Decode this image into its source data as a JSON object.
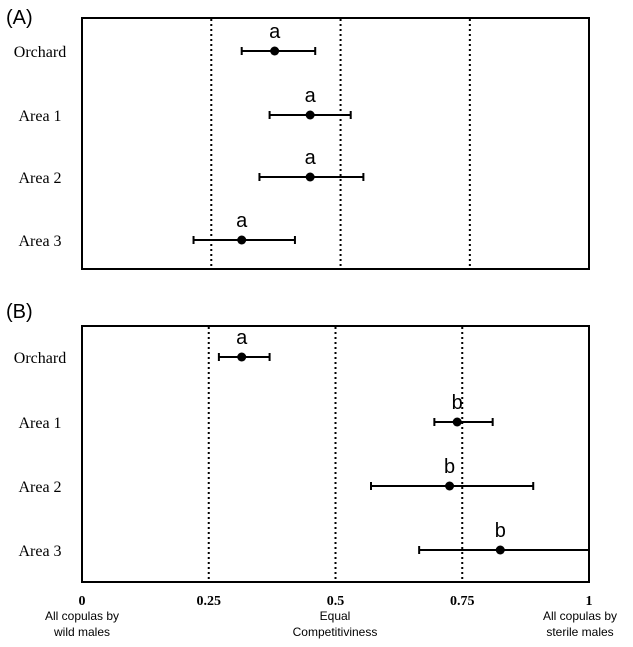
{
  "chart_data": [
    {
      "type": "scatter",
      "panel_label": "(A)",
      "categories": [
        "Orchard",
        "Area 1",
        "Area 2",
        "Area 3"
      ],
      "values": [
        0.38,
        0.45,
        0.45,
        0.315
      ],
      "ci_low": [
        0.315,
        0.37,
        0.35,
        0.22
      ],
      "ci_high": [
        0.46,
        0.53,
        0.555,
        0.42
      ],
      "letters": [
        "a",
        "a",
        "a",
        "a"
      ],
      "reference_lines": [
        0.255,
        0.51,
        0.765
      ],
      "xlim": [
        0,
        1
      ]
    },
    {
      "type": "scatter",
      "panel_label": "(B)",
      "categories": [
        "Orchard",
        "Area 1",
        "Area 2",
        "Area 3"
      ],
      "values": [
        0.315,
        0.74,
        0.725,
        0.825
      ],
      "ci_low": [
        0.27,
        0.695,
        0.57,
        0.665
      ],
      "ci_high": [
        0.37,
        0.81,
        0.89,
        1.0
      ],
      "letters": [
        "a",
        "b",
        "b",
        "b"
      ],
      "reference_lines": [
        0.25,
        0.5,
        0.75
      ],
      "xlim": [
        0,
        1
      ],
      "x_ticks": [
        "0",
        "0.25",
        "0.5",
        "0.75",
        "1"
      ],
      "x_tick_values": [
        0,
        0.25,
        0.5,
        0.75,
        1
      ]
    }
  ],
  "x_annotations": {
    "left_line1": "All copulas by",
    "left_line2": "wild males",
    "center_line1": "Equal",
    "center_line2": "Competitiviness",
    "right_line1": "All copulas by",
    "right_line2": "sterile males"
  }
}
